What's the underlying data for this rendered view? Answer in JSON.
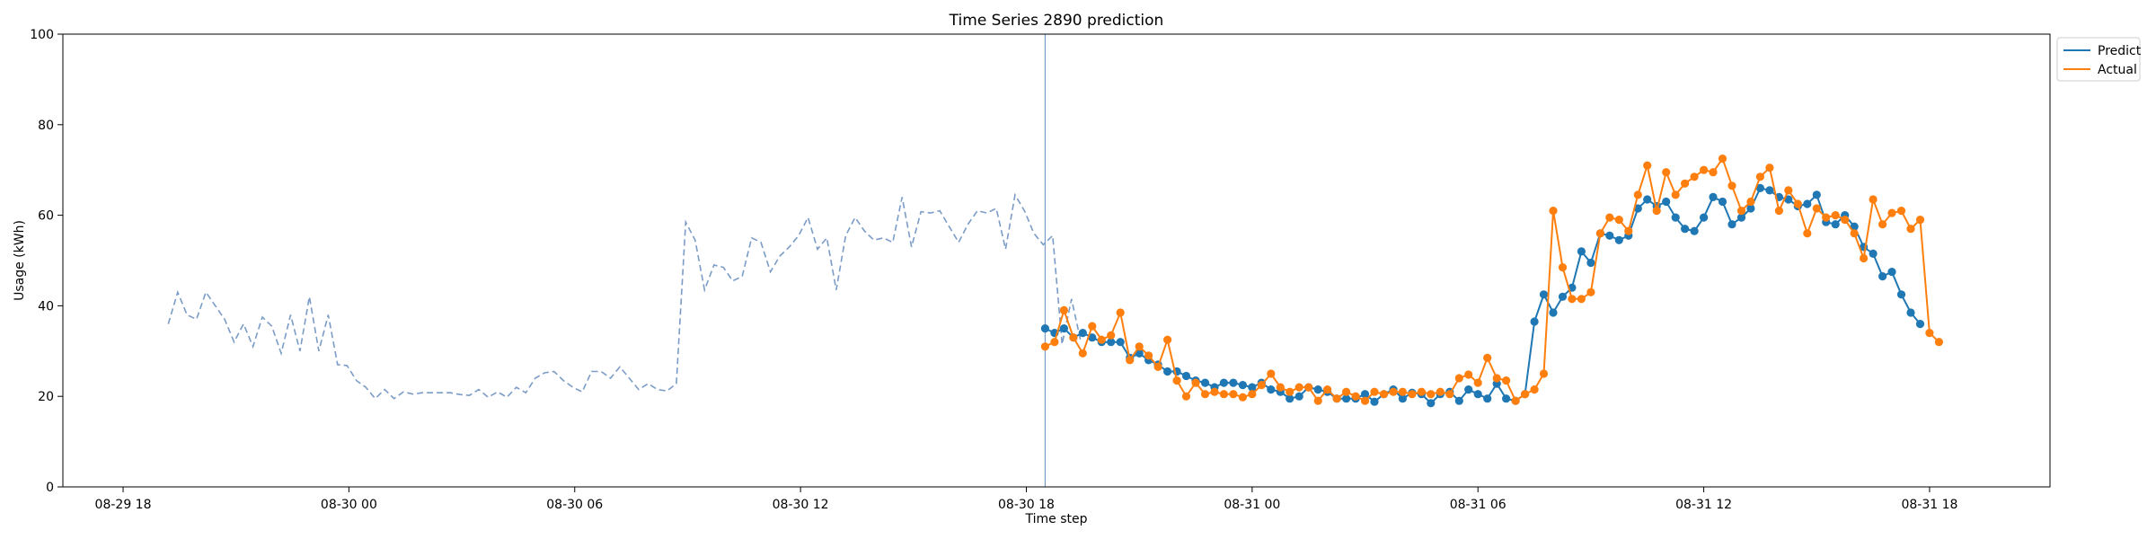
{
  "chart_data": {
    "type": "line",
    "title": "Time Series 2890 prediction",
    "xlabel": "Time step",
    "ylabel": "Usage (kWh)",
    "ylim": [
      0,
      100
    ],
    "yticks": [
      0,
      20,
      40,
      60,
      80,
      100
    ],
    "xlim_hours": [
      -1.6,
      51.2
    ],
    "xticks": [
      {
        "label": "08-29 18",
        "hours": 0
      },
      {
        "label": "08-30 00",
        "hours": 6
      },
      {
        "label": "08-30 06",
        "hours": 12
      },
      {
        "label": "08-30 12",
        "hours": 18
      },
      {
        "label": "08-30 18",
        "hours": 24
      },
      {
        "label": "08-31 00",
        "hours": 30
      },
      {
        "label": "08-31 06",
        "hours": 36
      },
      {
        "label": "08-31 12",
        "hours": 42
      },
      {
        "label": "08-31 18",
        "hours": 48
      }
    ],
    "forecast_start_hours": 24.5,
    "step_hours": 0.25,
    "history": {
      "start_hours": 1.2,
      "style": "dashed",
      "color": "#7b9cc7",
      "values": [
        36,
        43,
        38,
        37,
        43,
        40,
        37,
        32,
        36,
        31,
        37.5,
        35.5,
        29.5,
        38,
        30,
        42,
        30,
        38,
        27,
        26.8,
        23.5,
        22,
        19.5,
        21.5,
        19.5,
        21,
        20.5,
        20.8,
        20.8,
        20.8,
        20.8,
        20.4,
        20.2,
        21.5,
        19.8,
        21,
        19.8,
        22,
        20.8,
        24,
        25.2,
        25.5,
        23.5,
        22,
        21,
        25.5,
        25.5,
        24,
        26.5,
        24,
        21.5,
        22.8,
        21.5,
        21.2,
        22.8,
        58.5,
        54.5,
        43.5,
        49,
        48.5,
        45.5,
        46.5,
        55,
        54,
        47.5,
        51,
        53,
        55.5,
        59.5,
        52.5,
        55,
        43.5,
        55.5,
        59.5,
        56.5,
        54.5,
        55,
        54,
        64,
        53,
        60.8,
        60.5,
        61,
        57.5,
        54,
        58,
        61,
        60.5,
        61.5,
        52.5,
        64.5,
        61,
        56,
        53.5,
        55.5,
        31.5,
        41.5,
        32
      ]
    },
    "series": [
      {
        "name": "Predict",
        "color": "#1f77b4",
        "start_hours": 24.5,
        "values": [
          35,
          34,
          35,
          33,
          34,
          33,
          32,
          32,
          32,
          28.5,
          29.5,
          28,
          27,
          25.5,
          25.5,
          24.5,
          23.5,
          23,
          22,
          23,
          23,
          22.5,
          22,
          23,
          21.5,
          21,
          19.5,
          20,
          22,
          21.5,
          21,
          19.5,
          19.5,
          19.5,
          20.5,
          18.8,
          20.5,
          21.5,
          19.5,
          20.8,
          20.5,
          18.5,
          20.5,
          21,
          19,
          21.5,
          20.5,
          19.5,
          22.8,
          19.5,
          19,
          20.5,
          36.5,
          42.5,
          38.5,
          42,
          44,
          52,
          49.5,
          56,
          55.5,
          54.5,
          55.5,
          61.5,
          63.5,
          62,
          63,
          59.5,
          57,
          56.5,
          59.5,
          64,
          63,
          58,
          59.5,
          61.5,
          66,
          65.5,
          64,
          63.5,
          62,
          62.5,
          64.5,
          58.5,
          58,
          60,
          57.5,
          53,
          51.5,
          46.5,
          47.5,
          42.5,
          38.5,
          36
        ]
      },
      {
        "name": "Actual",
        "color": "#ff7f0e",
        "start_hours": 24.5,
        "values": [
          31,
          32,
          39,
          33,
          29.5,
          35.5,
          32.5,
          33.5,
          38.5,
          28,
          31,
          29,
          26.5,
          32.5,
          23.5,
          20,
          23,
          20.5,
          21,
          20.5,
          20.5,
          19.8,
          20.5,
          22.5,
          25,
          22,
          21,
          22,
          22,
          19,
          21.5,
          19.5,
          21,
          20,
          19,
          21,
          20.5,
          21,
          21,
          20.5,
          21,
          20.5,
          21,
          20.5,
          24,
          24.8,
          23,
          28.5,
          24,
          23.5,
          19,
          20.5,
          21.5,
          25,
          61,
          48.5,
          41.5,
          41.5,
          43,
          56,
          59.5,
          59,
          56.5,
          64.5,
          71,
          61,
          69.5,
          64.5,
          67,
          68.5,
          70,
          69.5,
          72.5,
          66.5,
          61,
          63,
          68.5,
          70.5,
          61,
          65.5,
          62.5,
          56,
          61.5,
          59.5,
          60,
          59,
          56,
          50.5,
          63.5,
          58,
          60.5,
          61,
          57,
          59,
          34,
          32
        ]
      }
    ],
    "legend": {
      "location": "top-right",
      "entries": [
        "Predict",
        "Actual"
      ]
    },
    "grid": false
  }
}
